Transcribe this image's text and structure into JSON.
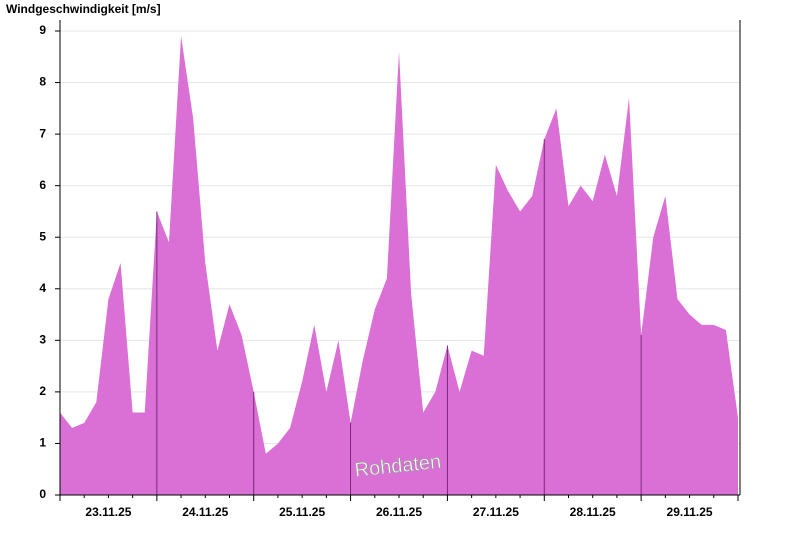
{
  "chart_data": {
    "type": "area",
    "title": "Windgeschwindigkeit [m/s]",
    "annotation": "Rohdaten",
    "categories": [
      null,
      null,
      null,
      null,
      "23.11.25",
      null,
      null,
      null,
      null,
      null,
      null,
      null,
      "24.11.25",
      null,
      null,
      null,
      null,
      null,
      null,
      null,
      "25.11.25",
      null,
      null,
      null,
      null,
      null,
      null,
      null,
      "26.11.25",
      null,
      null,
      null,
      null,
      null,
      null,
      null,
      "27.11.25",
      null,
      null,
      null,
      null,
      null,
      null,
      null,
      "28.11.25",
      null,
      null,
      null,
      null,
      null,
      null,
      null,
      "29.11.25",
      null,
      null,
      null,
      null
    ],
    "values": [
      1.6,
      1.3,
      1.4,
      1.8,
      3.8,
      4.5,
      1.6,
      1.6,
      5.5,
      4.9,
      8.9,
      7.3,
      4.5,
      2.8,
      3.7,
      3.1,
      2.0,
      0.8,
      1.0,
      1.3,
      2.2,
      3.3,
      2.0,
      3.0,
      1.4,
      2.6,
      3.6,
      4.2,
      8.6,
      3.9,
      1.6,
      2.0,
      2.9,
      2.0,
      2.8,
      2.7,
      6.4,
      5.9,
      5.5,
      5.8,
      6.9,
      7.5,
      5.6,
      6.0,
      5.7,
      6.6,
      5.8,
      7.7,
      3.1,
      5.0,
      5.8,
      3.8,
      3.5,
      3.3,
      3.3,
      3.2,
      1.5
    ],
    "color": "#da70d6",
    "ylim": [
      0,
      9
    ],
    "yticks": [
      0,
      1,
      2,
      3,
      4,
      5,
      6,
      7,
      8,
      9
    ],
    "grid": true
  }
}
